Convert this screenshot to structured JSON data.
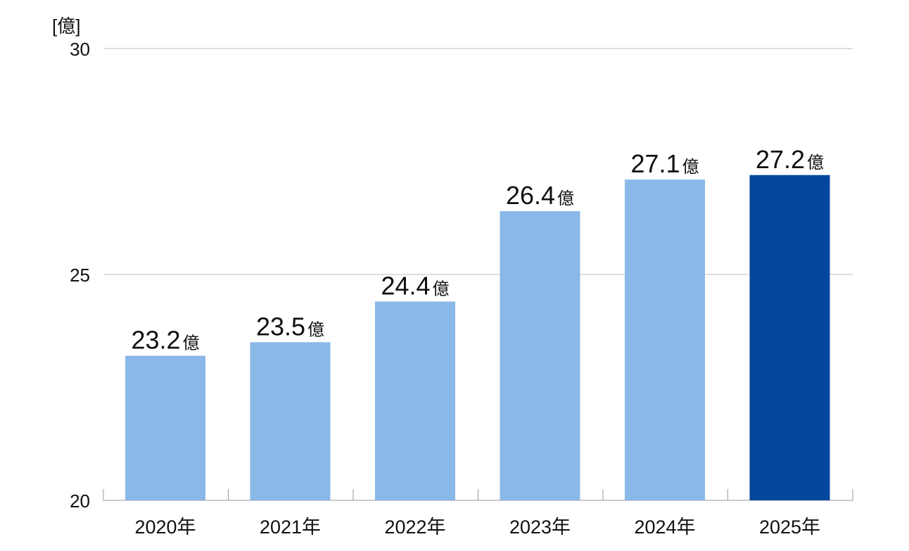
{
  "chart_data": {
    "type": "bar",
    "unit_label": "[億]",
    "categories": [
      "2020年",
      "2021年",
      "2022年",
      "2023年",
      "2024年",
      "2025年"
    ],
    "values": [
      23.2,
      23.5,
      24.4,
      26.4,
      27.1,
      27.2
    ],
    "value_labels": [
      "23.2",
      "23.5",
      "24.4",
      "26.4",
      "27.1",
      "27.2"
    ],
    "value_unit": "億",
    "ylim": [
      20,
      30
    ],
    "yticks": [
      20,
      25,
      30
    ],
    "ytick_labels": [
      "20",
      "25",
      "30"
    ],
    "grid": true,
    "colors": {
      "bar": "#8ab8e8",
      "highlight_bar": "#02479c",
      "grid": "#bdbdbd",
      "axis": "#9a9a9a"
    },
    "highlight_index": 5
  }
}
